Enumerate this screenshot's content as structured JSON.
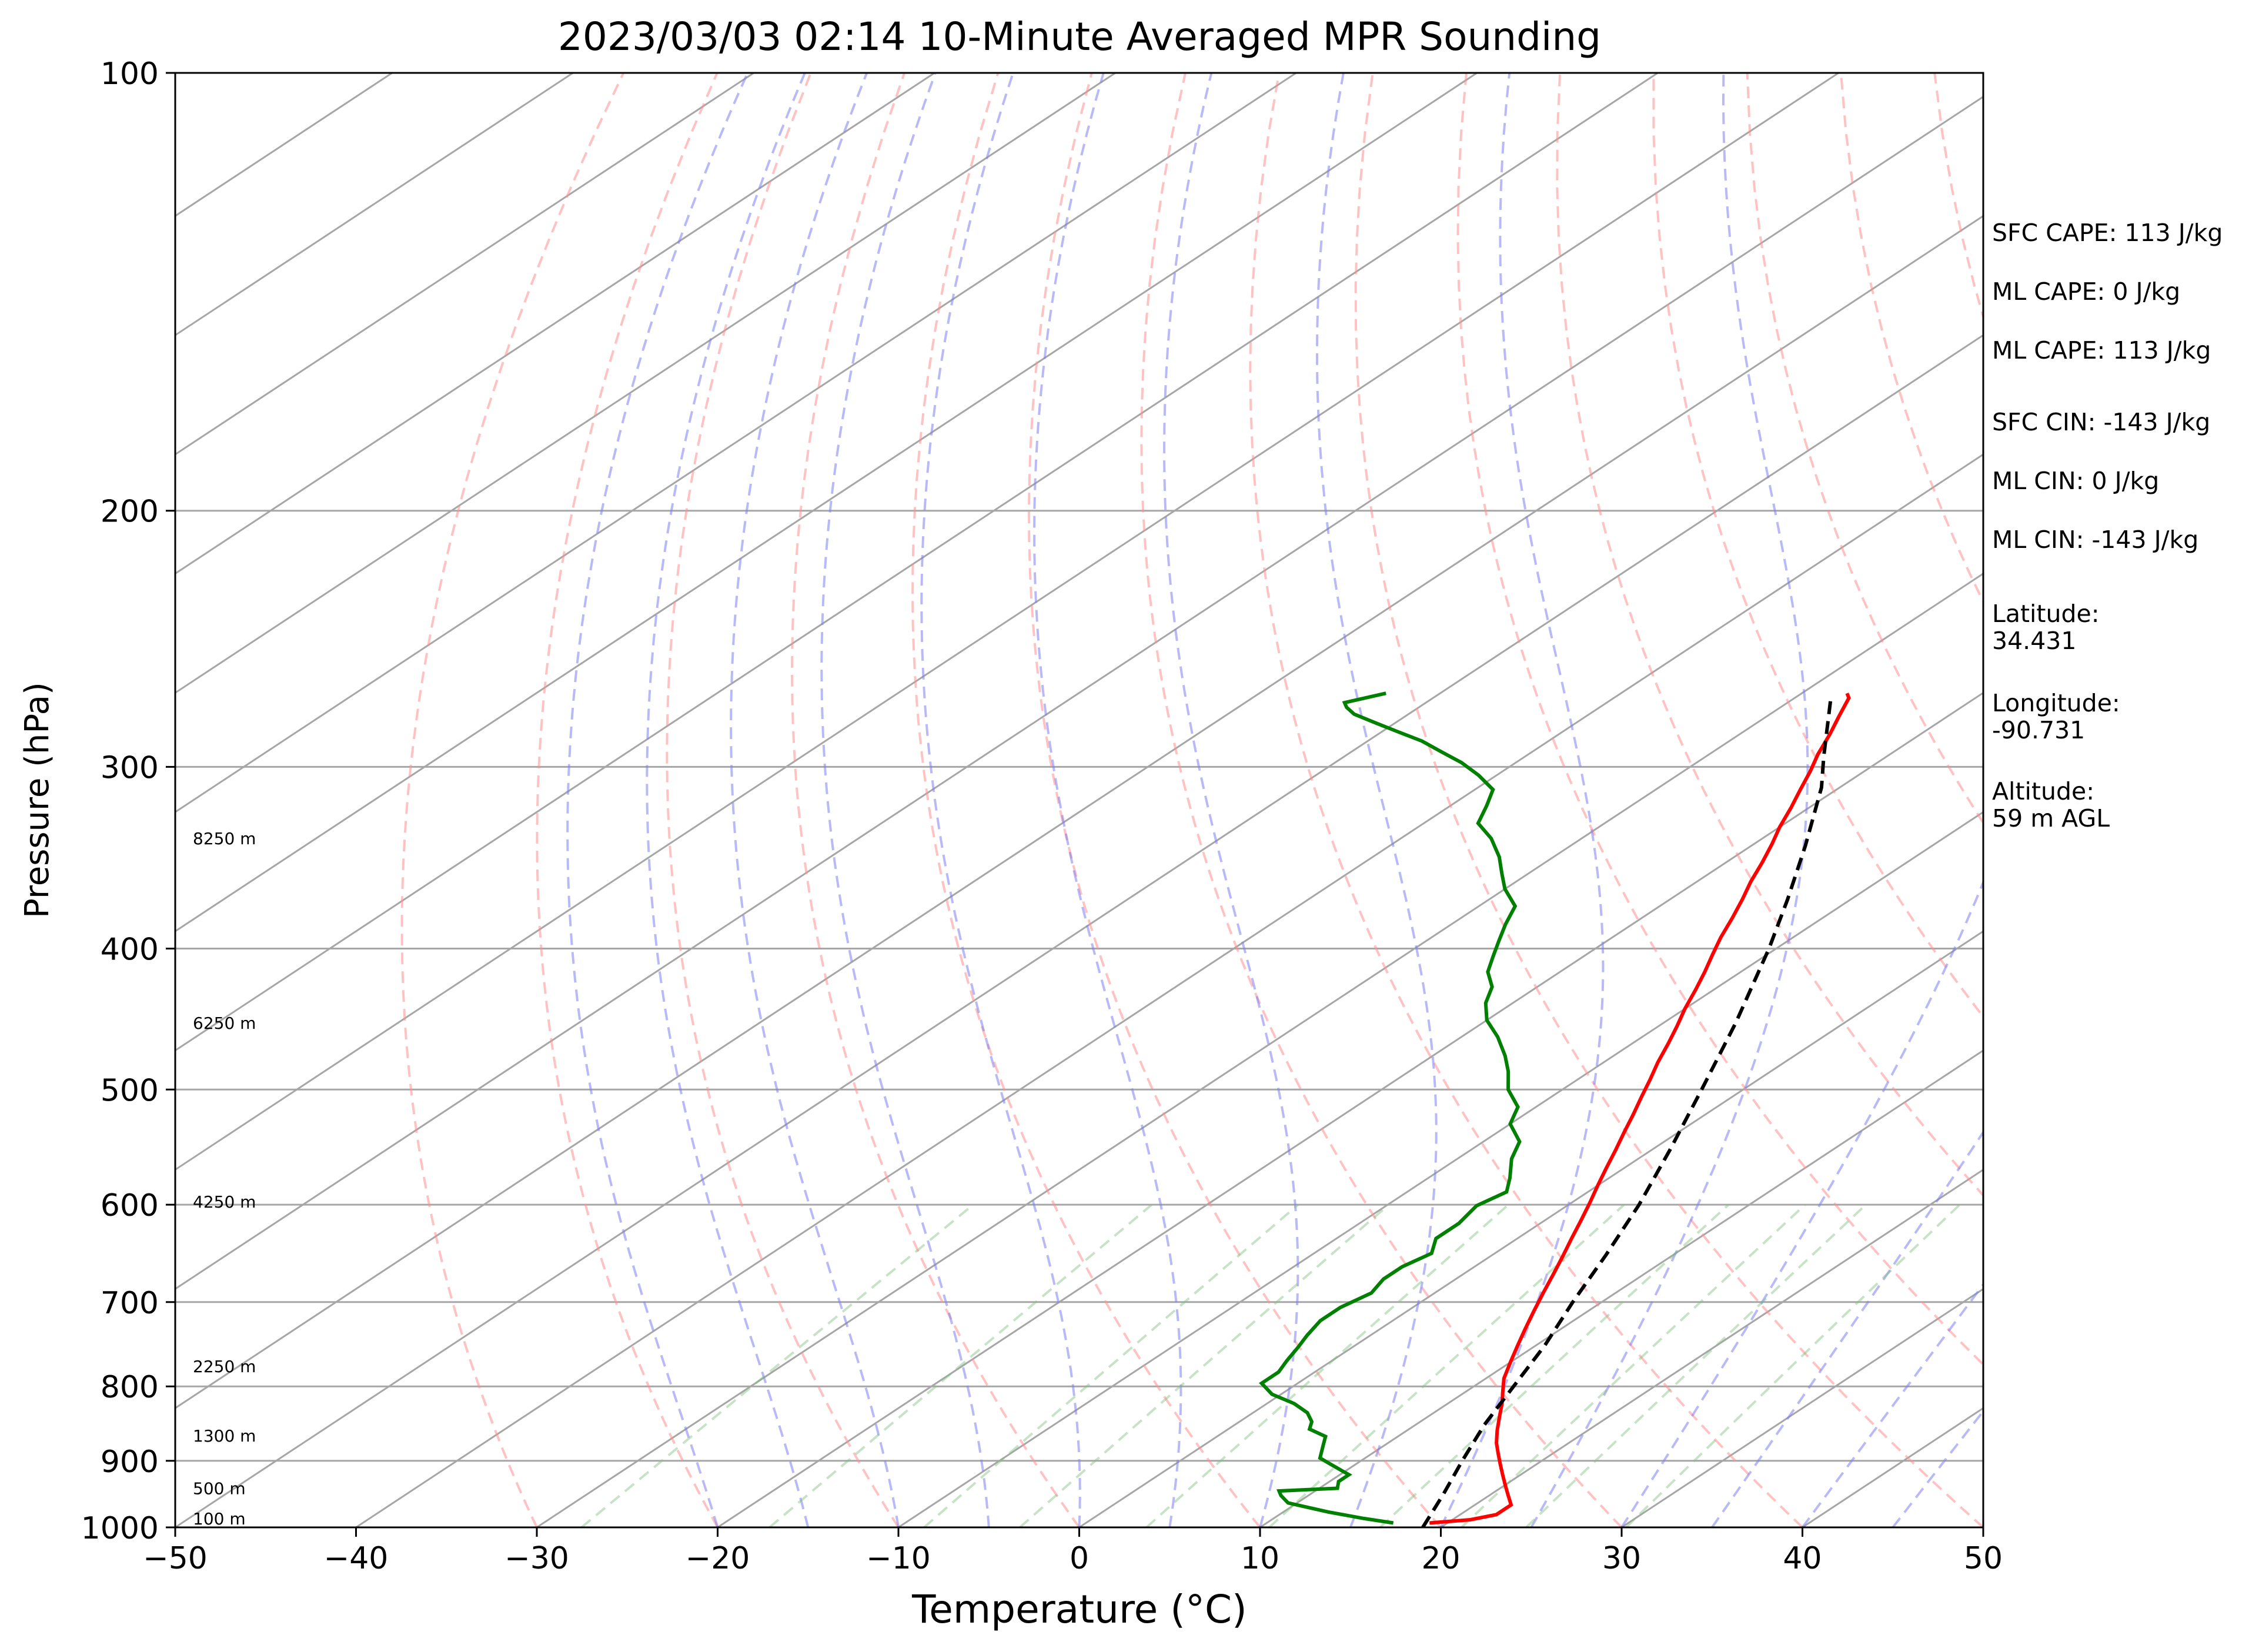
{
  "chart_data": {
    "type": "line",
    "title": "2023/03/03 02:14 10-Minute Averaged MPR Sounding",
    "xlabel": "Temperature (°C)",
    "ylabel": "Pressure (hPa)",
    "xlim": [
      -50,
      50
    ],
    "ylim": [
      1000,
      100
    ],
    "y_scale": "log",
    "skew": "skew-T log-p",
    "grid": true,
    "x_ticks": [
      "−50",
      "−40",
      "−30",
      "−20",
      "−10",
      "0",
      "10",
      "20",
      "30",
      "40",
      "50"
    ],
    "y_ticks": [
      {
        "p": 100,
        "label": "100"
      },
      {
        "p": 200,
        "label": "200"
      },
      {
        "p": 300,
        "label": "300"
      },
      {
        "p": 400,
        "label": "400"
      },
      {
        "p": 500,
        "label": "500"
      },
      {
        "p": 600,
        "label": "600"
      },
      {
        "p": 700,
        "label": "700"
      },
      {
        "p": 800,
        "label": "800"
      },
      {
        "p": 900,
        "label": "900"
      },
      {
        "p": 1000,
        "label": "1000"
      }
    ],
    "height_labels": [
      {
        "p": 986,
        "label": "100 m"
      },
      {
        "p": 940,
        "label": "500 m"
      },
      {
        "p": 865,
        "label": "1300 m"
      },
      {
        "p": 775,
        "label": "2250 m"
      },
      {
        "p": 597,
        "label": "4250 m"
      },
      {
        "p": 450,
        "label": "6250 m"
      },
      {
        "p": 336,
        "label": "8250 m"
      }
    ],
    "series": [
      {
        "role": "temperature",
        "color": "#ff0000",
        "points": [
          [
            19,
            993
          ],
          [
            21,
            988
          ],
          [
            22,
            980
          ],
          [
            22,
            965
          ],
          [
            21,
            950
          ],
          [
            20,
            935
          ],
          [
            19,
            920
          ],
          [
            18,
            905
          ],
          [
            17,
            890
          ],
          [
            16,
            875
          ],
          [
            15,
            858
          ],
          [
            14,
            840
          ],
          [
            13,
            822
          ],
          [
            12,
            806
          ],
          [
            11,
            790
          ],
          [
            10,
            770
          ],
          [
            9,
            750
          ],
          [
            8,
            730
          ],
          [
            7,
            710
          ],
          [
            6,
            690
          ],
          [
            5,
            670
          ],
          [
            4,
            651
          ],
          [
            3,
            633
          ],
          [
            2,
            615
          ],
          [
            1,
            598
          ],
          [
            0,
            582
          ],
          [
            -1,
            566
          ],
          [
            -2,
            550
          ],
          [
            -3,
            535
          ],
          [
            -4,
            520
          ],
          [
            -5,
            506
          ],
          [
            -6,
            492
          ],
          [
            -7,
            479
          ],
          [
            -8,
            465
          ],
          [
            -9,
            452
          ],
          [
            -10,
            440
          ],
          [
            -11,
            427
          ],
          [
            -12,
            415
          ],
          [
            -13,
            404
          ],
          [
            -14,
            393
          ],
          [
            -15,
            381
          ],
          [
            -16,
            370
          ],
          [
            -17,
            360
          ],
          [
            -18,
            349
          ],
          [
            -19,
            339
          ],
          [
            -20,
            330
          ],
          [
            -21,
            320
          ],
          [
            -22,
            311
          ],
          [
            -23,
            302
          ],
          [
            -24,
            294
          ],
          [
            -25,
            285
          ],
          [
            -26,
            277
          ],
          [
            -27,
            269
          ],
          [
            -27.5,
            267
          ]
        ]
      },
      {
        "role": "dewpoint",
        "color": "#008000",
        "points": [
          [
            17,
            993
          ],
          [
            15,
            986
          ],
          [
            12.5,
            976
          ],
          [
            9.5,
            962
          ],
          [
            8.5,
            951
          ],
          [
            8,
            944
          ],
          [
            11,
            940
          ],
          [
            10.5,
            930
          ],
          [
            10.5,
            920
          ],
          [
            9.5,
            912
          ],
          [
            8.5,
            904
          ],
          [
            7.5,
            896
          ],
          [
            7,
            886
          ],
          [
            6.5,
            876
          ],
          [
            6,
            866
          ],
          [
            4.5,
            856
          ],
          [
            4,
            846
          ],
          [
            3,
            834
          ],
          [
            1.5,
            822
          ],
          [
            -0.5,
            810
          ],
          [
            -2,
            796
          ],
          [
            -2,
            782
          ],
          [
            -2.5,
            768
          ],
          [
            -3,
            752
          ],
          [
            -3.5,
            738
          ],
          [
            -4,
            721
          ],
          [
            -4,
            706
          ],
          [
            -3.5,
            690
          ],
          [
            -4,
            675
          ],
          [
            -4,
            662
          ],
          [
            -3.5,
            648
          ],
          [
            -4.5,
            633
          ],
          [
            -4.5,
            618
          ],
          [
            -5,
            601
          ],
          [
            -4.5,
            588
          ],
          [
            -5.5,
            575
          ],
          [
            -7,
            558
          ],
          [
            -8,
            543
          ],
          [
            -10,
            528
          ],
          [
            -11,
            514
          ],
          [
            -13,
            500
          ],
          [
            -14.5,
            486
          ],
          [
            -16,
            474
          ],
          [
            -18,
            460
          ],
          [
            -20,
            448
          ],
          [
            -21.5,
            436
          ],
          [
            -22.5,
            425
          ],
          [
            -24,
            415
          ],
          [
            -25,
            405
          ],
          [
            -26,
            395
          ],
          [
            -27,
            385
          ],
          [
            -28,
            374
          ],
          [
            -30,
            364
          ],
          [
            -31.5,
            355
          ],
          [
            -33,
            346
          ],
          [
            -35,
            336
          ],
          [
            -37,
            328
          ],
          [
            -38,
            319
          ],
          [
            -39,
            311
          ],
          [
            -41,
            304
          ],
          [
            -43,
            298
          ],
          [
            -45,
            293
          ],
          [
            -47,
            288
          ],
          [
            -49,
            284
          ],
          [
            -51,
            280
          ],
          [
            -53,
            276
          ],
          [
            -54,
            273
          ],
          [
            -54.5,
            271
          ],
          [
            -53,
            267
          ]
        ]
      },
      {
        "role": "parcel",
        "color": "#000000",
        "dash": "dashed",
        "points": [
          [
            19,
            1000
          ],
          [
            17.4,
            950
          ],
          [
            15.6,
            900
          ],
          [
            13.8,
            850
          ],
          [
            12.2,
            800
          ],
          [
            10.5,
            750
          ],
          [
            8.4,
            700
          ],
          [
            6.3,
            650
          ],
          [
            3.9,
            600
          ],
          [
            1,
            550
          ],
          [
            -2.3,
            500
          ],
          [
            -6,
            450
          ],
          [
            -10.4,
            400
          ],
          [
            -13.5,
            370
          ],
          [
            -17,
            340
          ],
          [
            -21,
            310
          ],
          [
            -23.5,
            295
          ],
          [
            -28,
            269
          ]
        ]
      }
    ],
    "parameters": {
      "sfc_cape": "SFC CAPE: 113 J/kg",
      "ml_cape": "ML CAPE: 0 J/kg",
      "mu_cape": "ML CAPE: 113 J/kg",
      "sfc_cin": "SFC CIN: -143 J/kg",
      "ml_cin": "ML CIN: 0 J/kg",
      "mu_cin": "ML CIN: -143 J/kg",
      "latitude_label": "Latitude:",
      "latitude_value": "34.431",
      "longitude_label": "Longitude:",
      "longitude_value": "-90.731",
      "altitude_label": "Altitude:",
      "altitude_value": "59 m AGL"
    },
    "background_colors": {
      "isotherm": "#a6a6a6",
      "dry_adiabat": "#ff9090",
      "moist_adiabat": "#8080f0",
      "mixing_ratio": "#80c080",
      "isobar": "#a6a6a6"
    }
  }
}
